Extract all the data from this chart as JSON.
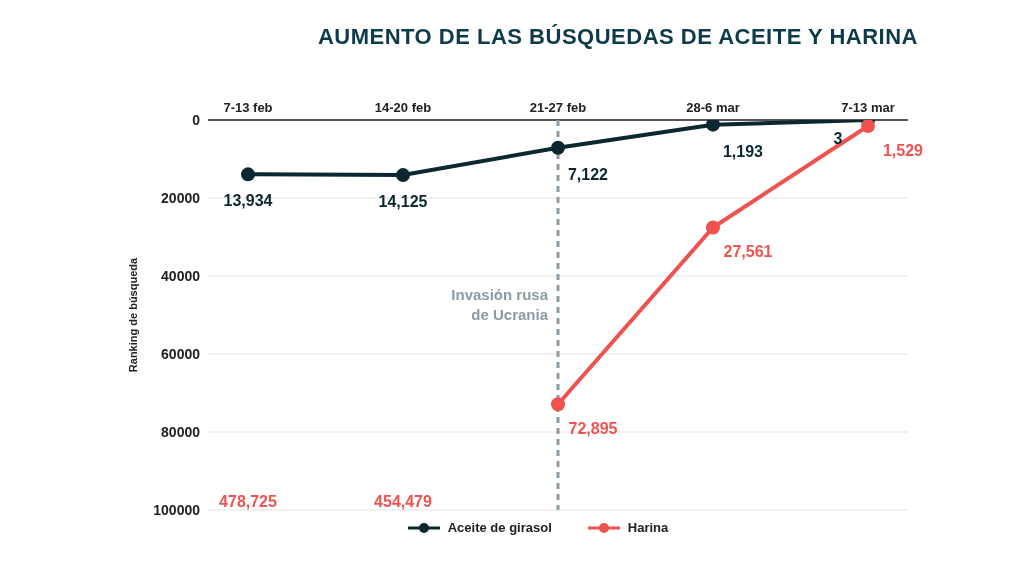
{
  "chart_data": {
    "type": "line",
    "title": "AUMENTO DE LAS BÚSQUEDAS DE ACEITE Y HARINA",
    "ylabel": "Ranking de búsqueda",
    "categories": [
      "7-13 feb",
      "14-20 feb",
      "21-27 feb",
      "28-6 mar",
      "7-13 mar"
    ],
    "series": [
      {
        "name": "Aceite de girasol",
        "color": "#0d2730",
        "values": [
          13934,
          14125,
          7122,
          1193,
          3
        ],
        "value_labels": [
          "13,934",
          "14,125",
          "7,122",
          "1,193",
          "3"
        ]
      },
      {
        "name": "Harina",
        "color": "#ef5350",
        "values": [
          null,
          null,
          72895,
          27561,
          1529
        ],
        "value_labels": [
          null,
          null,
          "72,895",
          "27,561",
          "1,529"
        ]
      }
    ],
    "ylim": [
      100000,
      0
    ],
    "yticks": [
      0,
      20000,
      40000,
      60000,
      80000,
      100000
    ],
    "annotations": [
      "478,725",
      "454,479"
    ],
    "grid": "y",
    "legend": "bottom",
    "marker": "circle",
    "line_style": "solid",
    "ref_lines": [
      {
        "axis": "x",
        "value": "21-27 feb",
        "label": "Invasión rusa\nde Ucrania",
        "color": "#8a9ba3",
        "line_style": "dashed"
      }
    ]
  }
}
